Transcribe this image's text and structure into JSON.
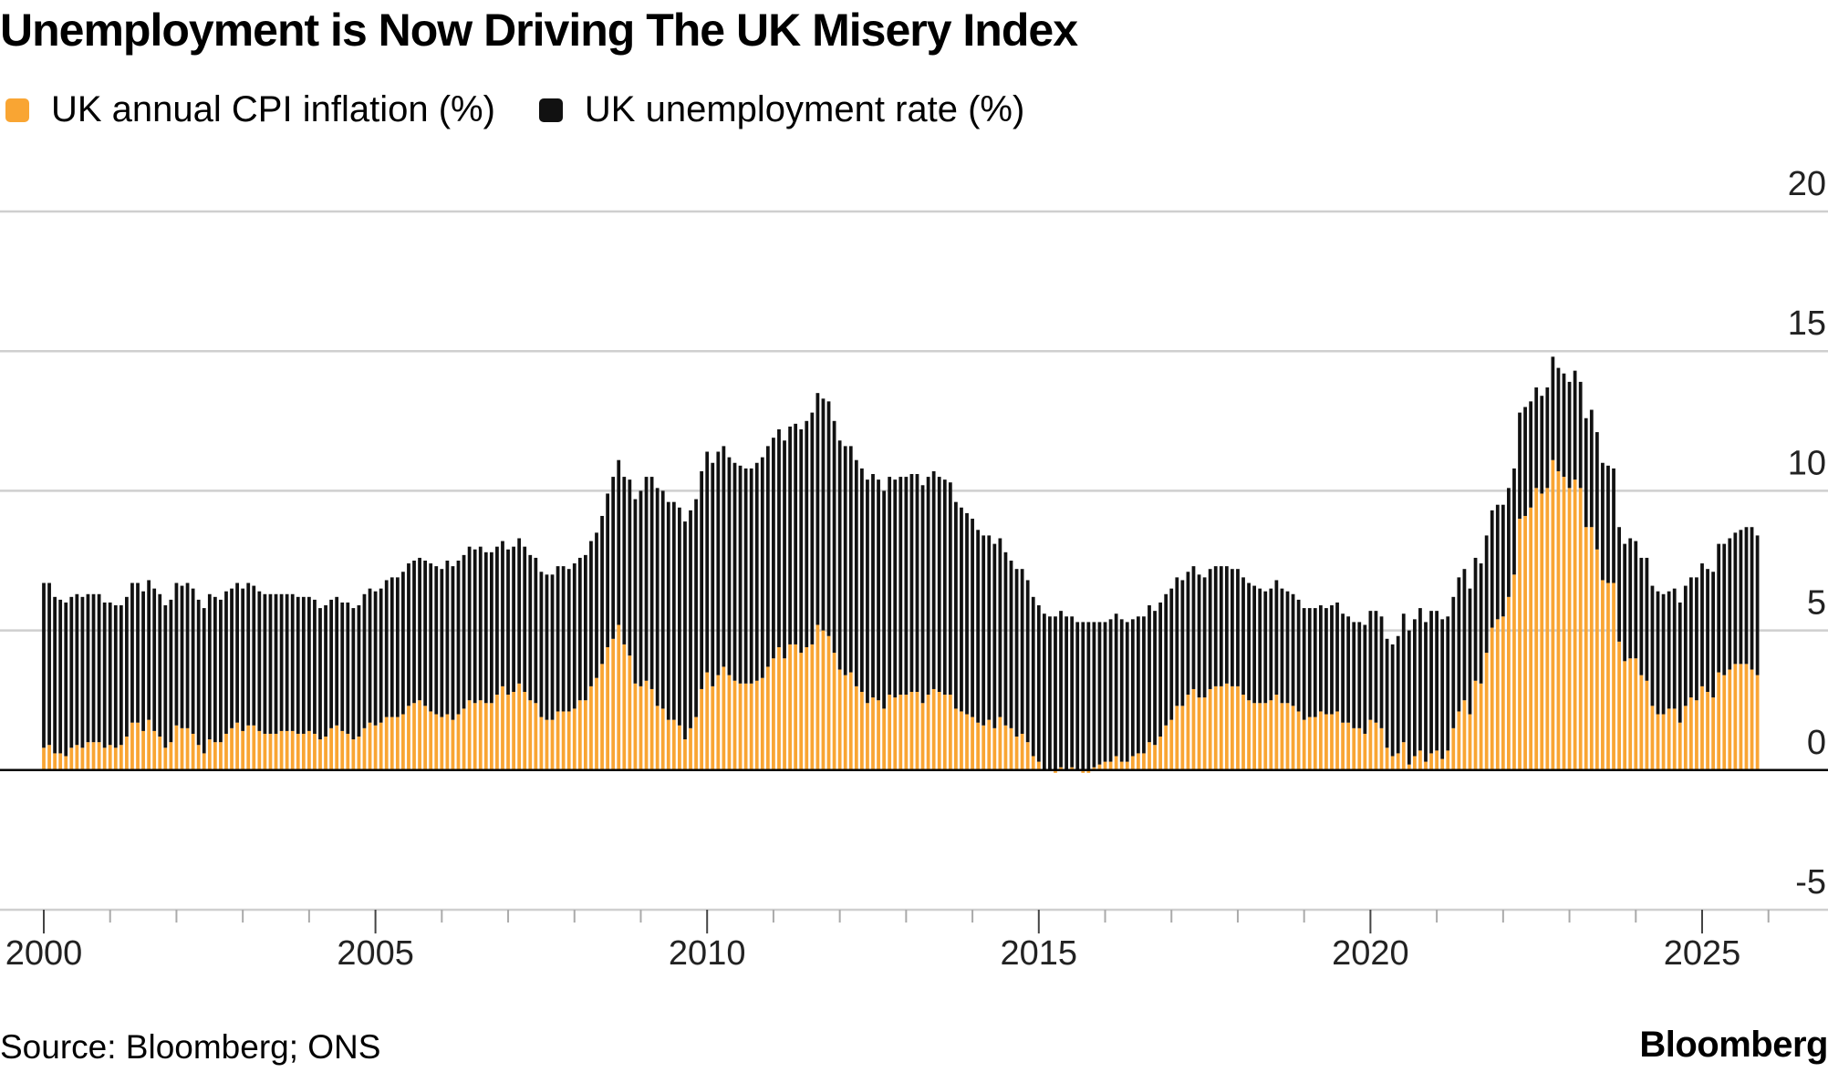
{
  "header": {
    "title": "Unemployment is Now Driving The UK Misery Index"
  },
  "legend": [
    {
      "label": "UK annual CPI inflation (%)",
      "color": "#F9A533"
    },
    {
      "label": "UK unemployment rate (%)",
      "color": "#111111"
    }
  ],
  "footer": {
    "source": "Source: Bloomberg; ONS",
    "brand": "Bloomberg"
  },
  "chart_data": {
    "type": "bar",
    "stacked": true,
    "frequency": "monthly",
    "x_start": "2000-01",
    "x_end": "2025-11",
    "ylim": [
      -5,
      20
    ],
    "yticks": [
      "20",
      "15",
      "10",
      "5",
      "0",
      "-5"
    ],
    "xticks": [
      "2000",
      "2005",
      "2010",
      "2015",
      "2020",
      "2025"
    ],
    "grid": true,
    "legend_position": "top-left",
    "series": [
      {
        "name": "UK annual CPI inflation (%)",
        "color": "#F9A533",
        "values": [
          0.8,
          0.9,
          0.6,
          0.6,
          0.5,
          0.8,
          0.9,
          0.8,
          1.0,
          1.0,
          1.0,
          0.8,
          0.9,
          0.8,
          0.9,
          1.2,
          1.7,
          1.7,
          1.4,
          1.8,
          1.4,
          1.2,
          0.8,
          1.0,
          1.6,
          1.5,
          1.5,
          1.3,
          0.9,
          0.6,
          1.1,
          1.0,
          1.0,
          1.3,
          1.5,
          1.7,
          1.4,
          1.6,
          1.6,
          1.4,
          1.3,
          1.3,
          1.3,
          1.4,
          1.4,
          1.4,
          1.3,
          1.3,
          1.4,
          1.3,
          1.1,
          1.2,
          1.5,
          1.6,
          1.4,
          1.3,
          1.1,
          1.2,
          1.5,
          1.7,
          1.6,
          1.7,
          1.9,
          1.9,
          1.9,
          2.0,
          2.3,
          2.4,
          2.5,
          2.3,
          2.1,
          2.0,
          1.9,
          2.0,
          1.8,
          2.0,
          2.2,
          2.5,
          2.4,
          2.5,
          2.4,
          2.4,
          2.7,
          3.0,
          2.7,
          2.8,
          3.1,
          2.8,
          2.5,
          2.4,
          1.9,
          1.8,
          1.8,
          2.1,
          2.1,
          2.1,
          2.2,
          2.5,
          2.5,
          3.0,
          3.3,
          3.8,
          4.4,
          4.7,
          5.2,
          4.5,
          4.1,
          3.1,
          3.0,
          3.2,
          2.9,
          2.3,
          2.2,
          1.8,
          1.8,
          1.6,
          1.1,
          1.5,
          1.9,
          2.9,
          3.5,
          3.0,
          3.4,
          3.7,
          3.4,
          3.2,
          3.1,
          3.1,
          3.1,
          3.2,
          3.3,
          3.7,
          4.0,
          4.4,
          4.0,
          4.5,
          4.5,
          4.2,
          4.4,
          4.5,
          5.2,
          5.0,
          4.8,
          4.2,
          3.6,
          3.4,
          3.5,
          3.0,
          2.8,
          2.4,
          2.6,
          2.5,
          2.2,
          2.7,
          2.6,
          2.7,
          2.7,
          2.8,
          2.8,
          2.4,
          2.7,
          2.9,
          2.8,
          2.7,
          2.7,
          2.2,
          2.1,
          2.0,
          1.9,
          1.7,
          1.6,
          1.8,
          1.5,
          1.9,
          1.6,
          1.5,
          1.2,
          1.3,
          1.0,
          0.5,
          0.3,
          0.0,
          0.0,
          -0.1,
          0.1,
          0.0,
          0.1,
          0.0,
          -0.1,
          -0.1,
          0.1,
          0.2,
          0.3,
          0.3,
          0.5,
          0.3,
          0.3,
          0.5,
          0.6,
          0.6,
          1.0,
          0.9,
          1.2,
          1.6,
          1.8,
          2.3,
          2.3,
          2.7,
          2.9,
          2.6,
          2.6,
          2.9,
          3.0,
          3.0,
          3.1,
          3.0,
          3.0,
          2.7,
          2.5,
          2.4,
          2.4,
          2.4,
          2.5,
          2.7,
          2.4,
          2.4,
          2.3,
          2.1,
          1.8,
          1.9,
          1.9,
          2.1,
          2.0,
          2.0,
          2.1,
          1.7,
          1.7,
          1.5,
          1.5,
          1.3,
          1.8,
          1.7,
          1.5,
          0.8,
          0.5,
          0.6,
          1.0,
          0.2,
          0.5,
          0.7,
          0.3,
          0.6,
          0.7,
          0.4,
          0.7,
          1.5,
          2.1,
          2.5,
          2.0,
          3.2,
          3.1,
          4.2,
          5.1,
          5.4,
          5.5,
          6.2,
          7.0,
          9.0,
          9.1,
          9.4,
          10.1,
          9.9,
          10.1,
          11.1,
          10.7,
          10.5,
          10.1,
          10.4,
          10.1,
          8.7,
          8.7,
          7.9,
          6.8,
          6.7,
          6.7,
          4.6,
          3.9,
          4.0,
          4.0,
          3.4,
          3.2,
          2.3,
          2.0,
          2.0,
          2.2,
          2.2,
          1.7,
          2.3,
          2.6,
          2.5,
          3.0,
          2.8,
          2.6,
          3.5,
          3.4,
          3.6,
          3.8,
          3.8,
          3.8,
          3.6,
          3.4
        ]
      },
      {
        "name": "UK unemployment rate (%)",
        "color": "#111111",
        "values": [
          5.9,
          5.8,
          5.6,
          5.5,
          5.5,
          5.4,
          5.4,
          5.4,
          5.3,
          5.3,
          5.3,
          5.2,
          5.1,
          5.1,
          5.0,
          5.0,
          5.0,
          5.0,
          5.0,
          5.0,
          5.1,
          5.1,
          5.1,
          5.1,
          5.1,
          5.1,
          5.2,
          5.2,
          5.2,
          5.2,
          5.2,
          5.2,
          5.1,
          5.1,
          5.0,
          5.0,
          5.1,
          5.1,
          5.0,
          5.0,
          5.0,
          5.0,
          5.0,
          4.9,
          4.9,
          4.9,
          4.9,
          4.9,
          4.8,
          4.8,
          4.7,
          4.7,
          4.6,
          4.6,
          4.6,
          4.7,
          4.7,
          4.7,
          4.8,
          4.8,
          4.8,
          4.8,
          4.9,
          5.0,
          5.0,
          5.1,
          5.1,
          5.1,
          5.1,
          5.2,
          5.3,
          5.3,
          5.3,
          5.5,
          5.5,
          5.5,
          5.5,
          5.5,
          5.5,
          5.5,
          5.4,
          5.4,
          5.3,
          5.2,
          5.2,
          5.2,
          5.2,
          5.2,
          5.2,
          5.2,
          5.2,
          5.2,
          5.2,
          5.2,
          5.2,
          5.1,
          5.2,
          5.1,
          5.2,
          5.2,
          5.2,
          5.3,
          5.5,
          5.8,
          5.9,
          6.0,
          6.3,
          6.6,
          7.0,
          7.3,
          7.6,
          7.8,
          7.8,
          7.8,
          7.8,
          7.8,
          7.8,
          7.8,
          7.8,
          7.8,
          7.9,
          8.0,
          8.0,
          7.9,
          7.8,
          7.8,
          7.8,
          7.7,
          7.7,
          7.8,
          7.9,
          7.9,
          7.9,
          7.8,
          7.8,
          7.8,
          7.9,
          8.0,
          8.1,
          8.3,
          8.3,
          8.3,
          8.4,
          8.3,
          8.2,
          8.2,
          8.1,
          8.1,
          8.0,
          8.0,
          8.0,
          7.9,
          7.8,
          7.8,
          7.8,
          7.8,
          7.8,
          7.8,
          7.8,
          7.8,
          7.8,
          7.8,
          7.7,
          7.7,
          7.6,
          7.4,
          7.3,
          7.2,
          7.1,
          6.9,
          6.8,
          6.6,
          6.6,
          6.4,
          6.2,
          6.0,
          6.0,
          5.9,
          5.8,
          5.7,
          5.6,
          5.6,
          5.5,
          5.5,
          5.6,
          5.5,
          5.4,
          5.3,
          5.3,
          5.3,
          5.2,
          5.1,
          5.0,
          5.1,
          5.1,
          5.1,
          5.0,
          4.9,
          4.9,
          4.9,
          4.9,
          4.8,
          4.8,
          4.7,
          4.7,
          4.6,
          4.5,
          4.4,
          4.4,
          4.4,
          4.3,
          4.3,
          4.3,
          4.3,
          4.2,
          4.2,
          4.2,
          4.2,
          4.2,
          4.2,
          4.1,
          4.0,
          4.0,
          4.1,
          4.1,
          4.0,
          4.0,
          4.0,
          4.0,
          3.9,
          3.9,
          3.8,
          3.8,
          3.9,
          3.9,
          3.9,
          3.8,
          3.8,
          3.8,
          3.9,
          3.9,
          4.0,
          4.0,
          3.9,
          4.0,
          4.2,
          4.6,
          4.8,
          4.9,
          5.1,
          5.0,
          5.1,
          5.0,
          5.0,
          4.8,
          4.7,
          4.8,
          4.7,
          4.5,
          4.4,
          4.3,
          4.2,
          4.2,
          4.1,
          4.0,
          3.9,
          3.8,
          3.8,
          3.9,
          3.8,
          3.6,
          3.5,
          3.6,
          3.7,
          3.7,
          3.7,
          3.8,
          3.9,
          3.8,
          3.9,
          4.2,
          4.2,
          4.2,
          4.2,
          4.1,
          4.1,
          4.2,
          4.3,
          4.2,
          4.2,
          4.4,
          4.3,
          4.4,
          4.3,
          4.2,
          4.3,
          4.3,
          4.3,
          4.3,
          4.4,
          4.4,
          4.4,
          4.5,
          4.6,
          4.7,
          4.7,
          4.7,
          4.8,
          4.9,
          5.1,
          5.0
        ]
      }
    ]
  }
}
